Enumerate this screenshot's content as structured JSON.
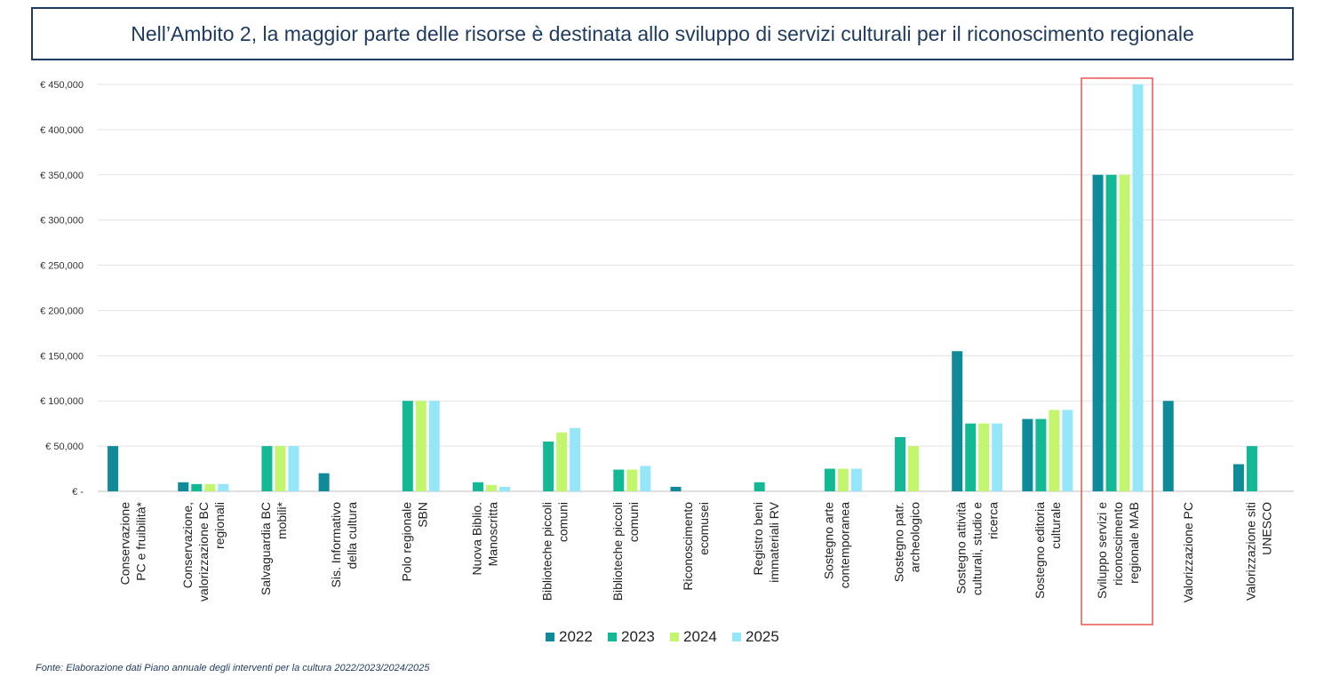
{
  "header": {
    "title": "Nell’Ambito 2, la maggior parte delle risorse è destinata allo sviluppo di servizi culturali per il riconoscimento regionale"
  },
  "footer": {
    "source": "Fonte: Elaborazione dati Piano annuale degli interventi per la cultura 2022/2023/2024/2025"
  },
  "chart_data": {
    "type": "bar",
    "title": "",
    "xlabel": "",
    "ylabel": "",
    "ylim": [
      0,
      450000
    ],
    "yticks": [
      {
        "value": 0,
        "label": "€ -"
      },
      {
        "value": 50000,
        "label": "€ 50,000"
      },
      {
        "value": 100000,
        "label": "€ 100,000"
      },
      {
        "value": 150000,
        "label": "€ 150,000"
      },
      {
        "value": 200000,
        "label": "€ 200,000"
      },
      {
        "value": 250000,
        "label": "€ 250,000"
      },
      {
        "value": 300000,
        "label": "€ 300,000"
      },
      {
        "value": 350000,
        "label": "€ 350,000"
      },
      {
        "value": 400000,
        "label": "€ 400,000"
      },
      {
        "value": 450000,
        "label": "€ 450,000"
      }
    ],
    "grid": true,
    "legend_position": "bottom",
    "highlight_category_index": 14,
    "highlight_color": "#e8564e",
    "categories": [
      [
        "Conservazione",
        "PC e fruibilità*"
      ],
      [
        "Conservazione,",
        "valorizzazione BC",
        "regionali"
      ],
      [
        "Salvaguardia BC",
        "mobili*"
      ],
      [
        "Sis. Informativo",
        "della cultura"
      ],
      [
        "Polo regionale",
        "SBN"
      ],
      [
        "Nuova Biblio.",
        "Manoscritta"
      ],
      [
        "Biblioteche piccoli",
        "comuni"
      ],
      [
        "Biblioteche piccoli",
        "comuni"
      ],
      [
        "Riconoscimento",
        "ecomusei"
      ],
      [
        "Registro beni",
        "immateriali RV"
      ],
      [
        "Sostegno arte",
        "contemporanea"
      ],
      [
        "Sostegno patr.",
        "archeologico"
      ],
      [
        "Sostegno attività",
        "culturali, studio e",
        "ricerca"
      ],
      [
        "Sostegno editoria",
        "culturale"
      ],
      [
        "Sviluppo servizi e",
        "riconoscimento",
        "regionale MAB"
      ],
      [
        "Valorizzazione PC"
      ],
      [
        "Valorizzazione siti",
        "UNESCO"
      ]
    ],
    "series": [
      {
        "name": "2022",
        "color": "#0e8a99",
        "values": [
          50000,
          10000,
          0,
          20000,
          0,
          0,
          0,
          0,
          5000,
          0,
          0,
          0,
          155000,
          80000,
          350000,
          100000,
          30000
        ]
      },
      {
        "name": "2023",
        "color": "#13b894",
        "values": [
          0,
          8000,
          50000,
          0,
          100000,
          10000,
          55000,
          24000,
          0,
          10000,
          25000,
          60000,
          75000,
          80000,
          350000,
          0,
          50000
        ]
      },
      {
        "name": "2024",
        "color": "#c3f56e",
        "values": [
          0,
          8000,
          50000,
          0,
          100000,
          7000,
          65000,
          24000,
          0,
          0,
          25000,
          50000,
          75000,
          90000,
          350000,
          0,
          0
        ]
      },
      {
        "name": "2025",
        "color": "#96e6fa",
        "values": [
          0,
          8000,
          50000,
          0,
          100000,
          5000,
          70000,
          28000,
          0,
          0,
          25000,
          0,
          75000,
          90000,
          450000,
          0,
          0
        ]
      }
    ]
  }
}
